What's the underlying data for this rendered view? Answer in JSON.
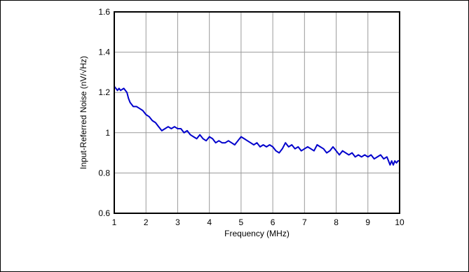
{
  "chart_data": {
    "type": "line",
    "title": "",
    "xlabel": "Frequency (MHz)",
    "ylabel": "Input-Referred Noise (nV/√Hz)",
    "xlim": [
      1,
      10
    ],
    "ylim": [
      0.6,
      1.6
    ],
    "grid": true,
    "x_ticks": [
      1,
      2,
      3,
      4,
      5,
      6,
      7,
      8,
      9,
      10
    ],
    "x_tick_labels": [
      "1",
      "2",
      "3",
      "4",
      "5",
      "6",
      "7",
      "8",
      "9",
      "10"
    ],
    "y_ticks": [
      0.6,
      0.8,
      1.0,
      1.2,
      1.4,
      1.6
    ],
    "y_tick_labels": [
      "0.6",
      "0.8",
      "1",
      "1.2",
      "1.4",
      "1.6"
    ],
    "series": [
      {
        "color": "#0000cc",
        "x": [
          1.0,
          1.05,
          1.1,
          1.15,
          1.2,
          1.3,
          1.4,
          1.45,
          1.5,
          1.55,
          1.6,
          1.7,
          1.8,
          1.9,
          2.0,
          2.1,
          2.2,
          2.3,
          2.4,
          2.5,
          2.6,
          2.7,
          2.8,
          2.9,
          3.0,
          3.1,
          3.2,
          3.3,
          3.4,
          3.5,
          3.6,
          3.7,
          3.8,
          3.9,
          4.0,
          4.1,
          4.2,
          4.3,
          4.4,
          4.5,
          4.6,
          4.7,
          4.8,
          4.9,
          5.0,
          5.1,
          5.2,
          5.3,
          5.4,
          5.5,
          5.6,
          5.7,
          5.8,
          5.9,
          6.0,
          6.1,
          6.2,
          6.3,
          6.4,
          6.5,
          6.6,
          6.7,
          6.8,
          6.9,
          7.0,
          7.1,
          7.2,
          7.3,
          7.4,
          7.5,
          7.6,
          7.7,
          7.8,
          7.9,
          8.0,
          8.1,
          8.2,
          8.3,
          8.4,
          8.5,
          8.6,
          8.7,
          8.8,
          8.9,
          9.0,
          9.1,
          9.2,
          9.3,
          9.4,
          9.5,
          9.6,
          9.65,
          9.7,
          9.75,
          9.8,
          9.85,
          9.9,
          9.95,
          10.0
        ],
        "values": [
          1.23,
          1.22,
          1.21,
          1.22,
          1.21,
          1.22,
          1.2,
          1.17,
          1.15,
          1.14,
          1.13,
          1.13,
          1.12,
          1.11,
          1.09,
          1.08,
          1.06,
          1.05,
          1.03,
          1.01,
          1.02,
          1.03,
          1.02,
          1.03,
          1.02,
          1.02,
          1.0,
          1.01,
          0.99,
          0.98,
          0.97,
          0.99,
          0.97,
          0.96,
          0.98,
          0.97,
          0.95,
          0.96,
          0.95,
          0.95,
          0.96,
          0.95,
          0.94,
          0.96,
          0.98,
          0.97,
          0.96,
          0.95,
          0.94,
          0.95,
          0.93,
          0.94,
          0.93,
          0.94,
          0.93,
          0.91,
          0.9,
          0.92,
          0.95,
          0.93,
          0.94,
          0.92,
          0.93,
          0.91,
          0.92,
          0.93,
          0.92,
          0.91,
          0.94,
          0.93,
          0.92,
          0.9,
          0.91,
          0.93,
          0.91,
          0.89,
          0.91,
          0.9,
          0.89,
          0.9,
          0.88,
          0.89,
          0.88,
          0.89,
          0.88,
          0.89,
          0.87,
          0.88,
          0.89,
          0.87,
          0.88,
          0.86,
          0.84,
          0.86,
          0.84,
          0.86,
          0.85,
          0.86,
          0.86
        ]
      }
    ]
  }
}
